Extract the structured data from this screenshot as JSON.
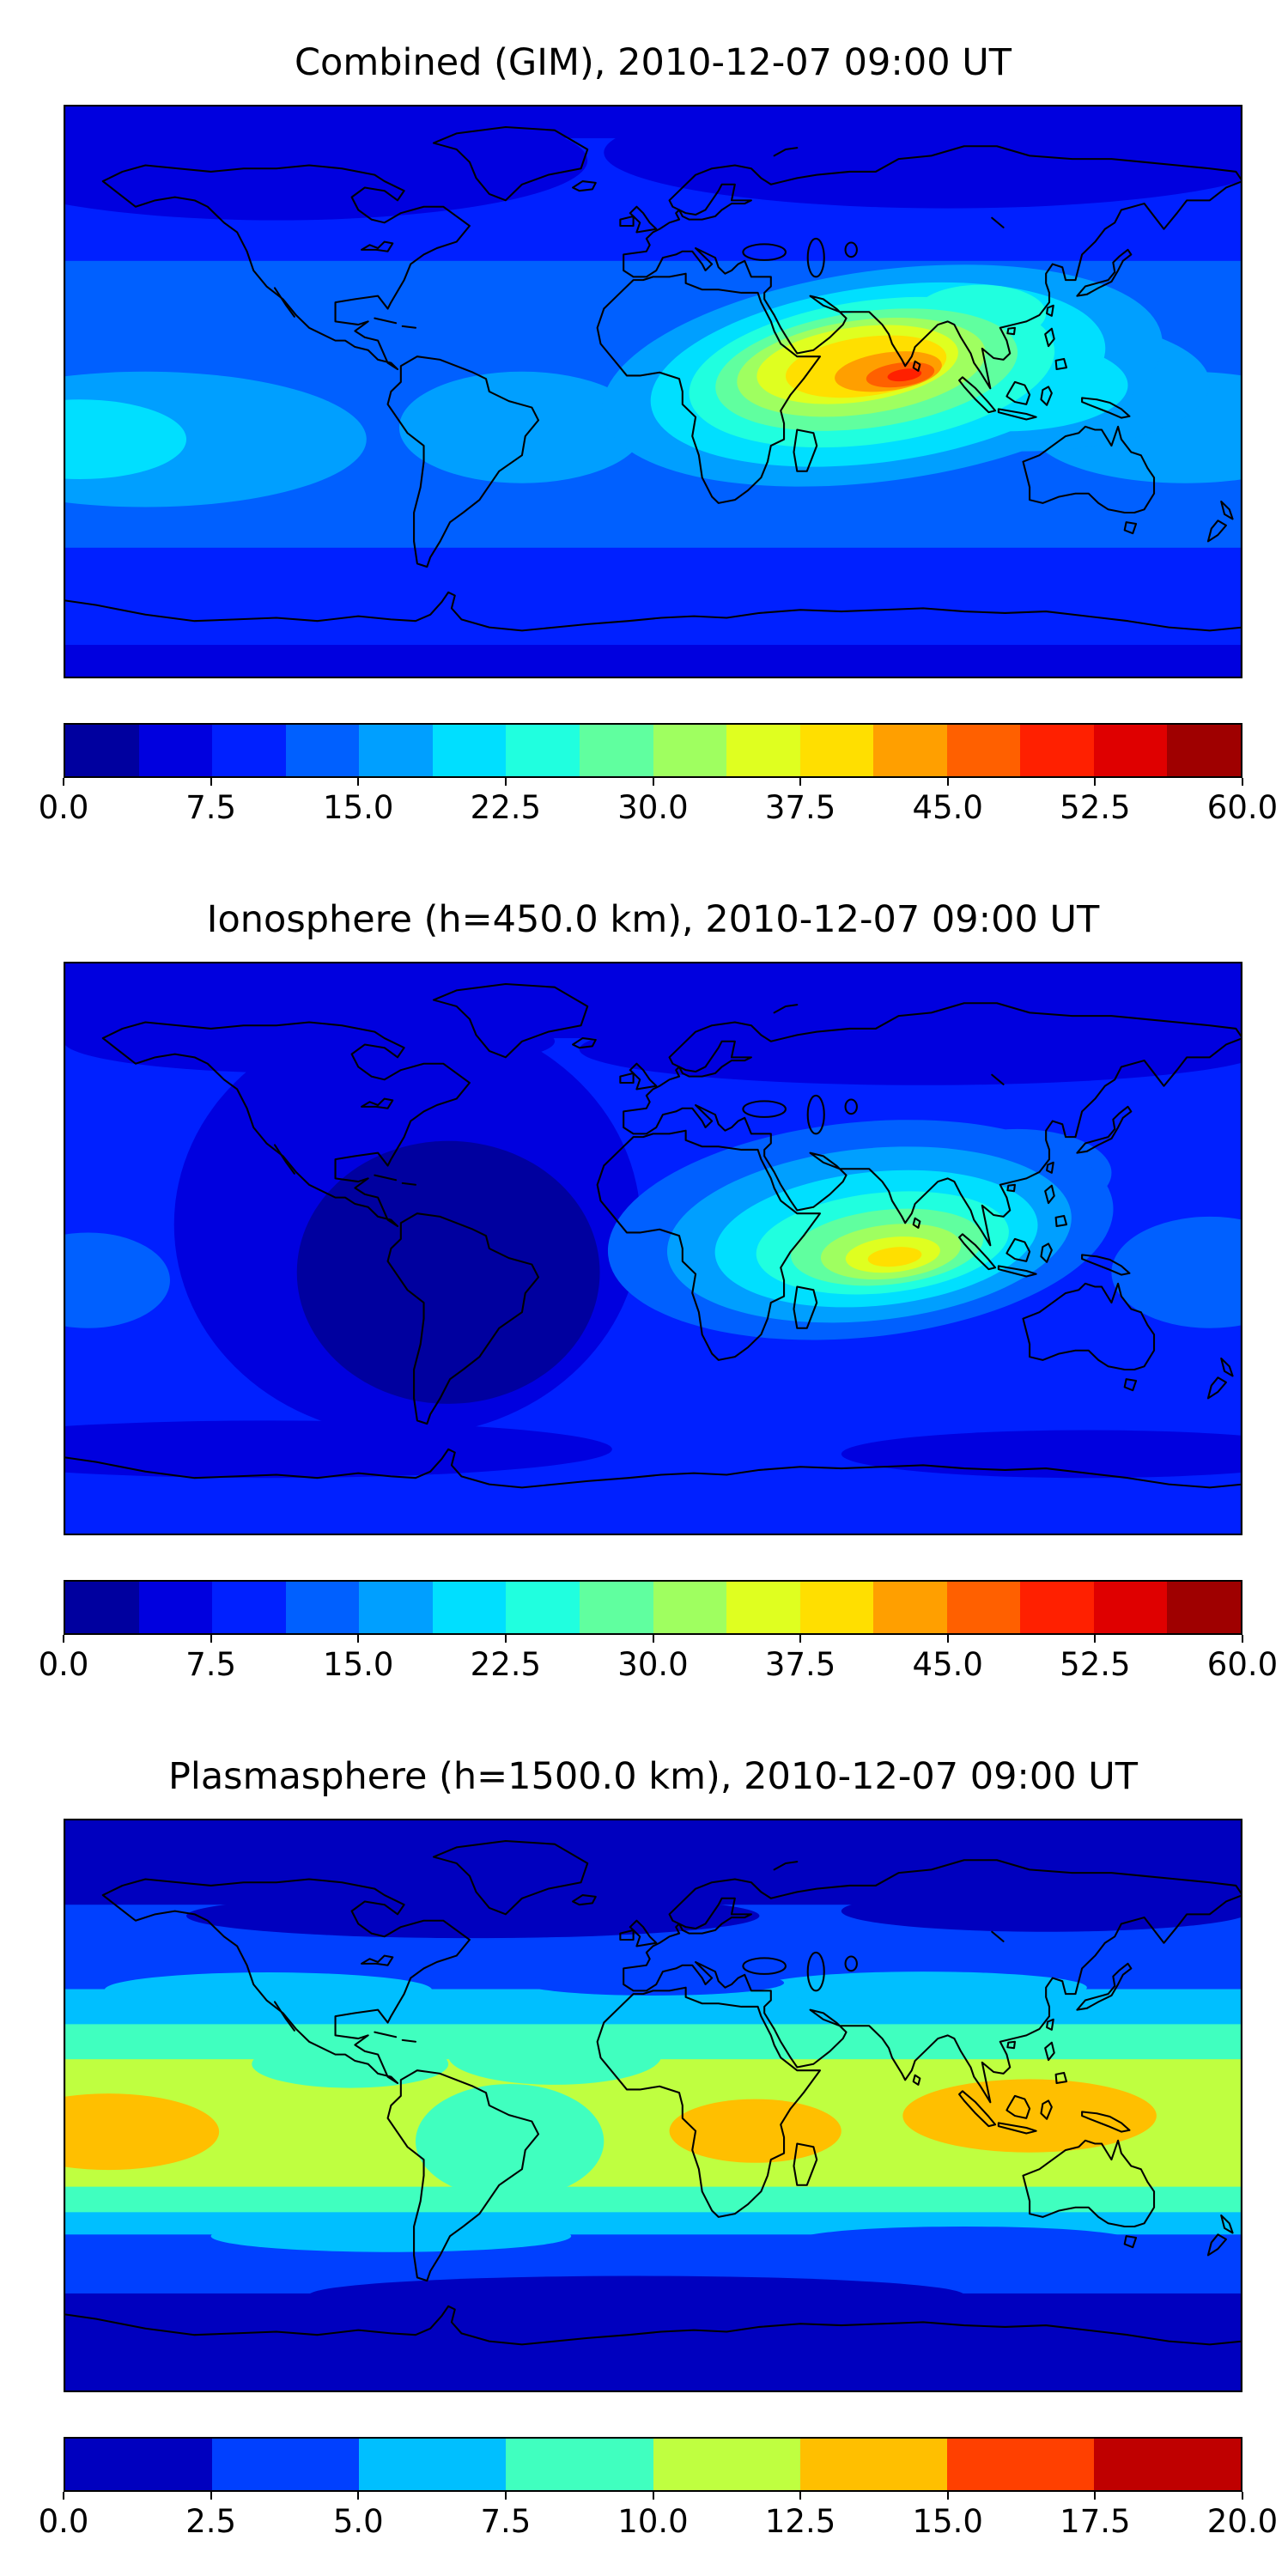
{
  "figure": {
    "background_color": "#ffffff",
    "coastline_color": "#000000",
    "description": "Three stacked global filled-contour maps of electron content at 2010-12-07 09:00 UT"
  },
  "panels": [
    {
      "id": "combined",
      "title": "Combined (GIM), 2010-12-07 09:00 UT",
      "palette": "jet16",
      "tick_labels": [
        "0.0",
        "7.5",
        "15.0",
        "22.5",
        "30.0",
        "37.5",
        "45.0",
        "52.5",
        "60.0"
      ]
    },
    {
      "id": "ionosphere",
      "title": "Ionosphere  (h=450.0 km), 2010-12-07 09:00 UT",
      "palette": "jet16",
      "tick_labels": [
        "0.0",
        "7.5",
        "15.0",
        "22.5",
        "30.0",
        "37.5",
        "45.0",
        "52.5",
        "60.0"
      ]
    },
    {
      "id": "plasmasphere",
      "title": "Plasmasphere (h=1500.0 km), 2010-12-07 09:00 UT",
      "palette": "jet8",
      "tick_labels": [
        "0.0",
        "2.5",
        "5.0",
        "7.5",
        "10.0",
        "12.5",
        "15.0",
        "17.5",
        "20.0"
      ]
    }
  ],
  "palettes": {
    "jet16": [
      "#00009f",
      "#0000df",
      "#0020ff",
      "#0060ff",
      "#009fff",
      "#00dfff",
      "#20ffdf",
      "#60ff9f",
      "#9fff60",
      "#dfff20",
      "#ffdf00",
      "#ff9f00",
      "#ff6000",
      "#ff2000",
      "#df0000",
      "#9f0000"
    ],
    "jet8": [
      "#0000bf",
      "#0040ff",
      "#00bfff",
      "#40ffbf",
      "#bfff40",
      "#ffbf00",
      "#ff4000",
      "#bf0000"
    ]
  },
  "chart_data": [
    {
      "type": "heatmap",
      "subtype": "filled-contour world map",
      "title": "Combined (GIM), 2010-12-07 09:00 UT",
      "projection": "equirectangular",
      "lon_range": [
        -180,
        180
      ],
      "lat_range": [
        -90,
        90
      ],
      "colormap": "jet",
      "value_range": [
        0,
        60
      ],
      "n_color_bands": 16,
      "colorbar_ticks": [
        0.0,
        7.5,
        15.0,
        22.5,
        30.0,
        37.5,
        45.0,
        52.5,
        60.0
      ],
      "features": [
        {
          "region": "dayside maximum over Indian Ocean (~78E, ~4N)",
          "value_approx": 55
        },
        {
          "region": "broad enhancement Africa to Southeast Asia",
          "value_approx": "30-45"
        },
        {
          "region": "equatorial Pacific and Atlantic band",
          "value_approx": "15-22"
        },
        {
          "region": "northern high latitudes",
          "value_approx": "3-10"
        },
        {
          "region": "southern high latitudes",
          "value_approx": "7-12"
        }
      ]
    },
    {
      "type": "heatmap",
      "subtype": "filled-contour world map",
      "title": "Ionosphere  (h=450.0 km), 2010-12-07 09:00 UT",
      "projection": "equirectangular",
      "lon_range": [
        -180,
        180
      ],
      "lat_range": [
        -90,
        90
      ],
      "colormap": "jet",
      "value_range": [
        0,
        60
      ],
      "n_color_bands": 16,
      "colorbar_ticks": [
        0.0,
        7.5,
        15.0,
        22.5,
        30.0,
        37.5,
        45.0,
        52.5,
        60.0
      ],
      "features": [
        {
          "region": "maximum south of India (~72E, ~4S)",
          "value_approx": 40
        },
        {
          "region": "cyan-green enhancement Africa to Southeast Asia",
          "value_approx": "20-35"
        },
        {
          "region": "dark minimum over Americas (nightside)",
          "value_approx": "1-6"
        },
        {
          "region": "high latitudes",
          "value_approx": "4-10"
        }
      ]
    },
    {
      "type": "heatmap",
      "subtype": "filled-contour world map",
      "title": "Plasmasphere (h=1500.0 km), 2010-12-07 09:00 UT",
      "projection": "equirectangular",
      "lon_range": [
        -180,
        180
      ],
      "lat_range": [
        -90,
        90
      ],
      "colormap": "jet",
      "value_range": [
        0,
        20
      ],
      "n_color_bands": 8,
      "colorbar_ticks": [
        0.0,
        2.5,
        5.0,
        7.5,
        10.0,
        12.5,
        15.0,
        17.5,
        20.0
      ],
      "features": [
        {
          "region": "zonal band structure centered on the magnetic equator",
          "value_approx": "7-12"
        },
        {
          "region": "equatorial maximum near 165W",
          "value_approx": 14
        },
        {
          "region": "equatorial maximum over Africa (~30E)",
          "value_approx": 14
        },
        {
          "region": "equatorial maximum over Southeast Asia (~115E)",
          "value_approx": 15
        },
        {
          "region": "polar caps",
          "value_approx": "1-2"
        }
      ]
    }
  ]
}
